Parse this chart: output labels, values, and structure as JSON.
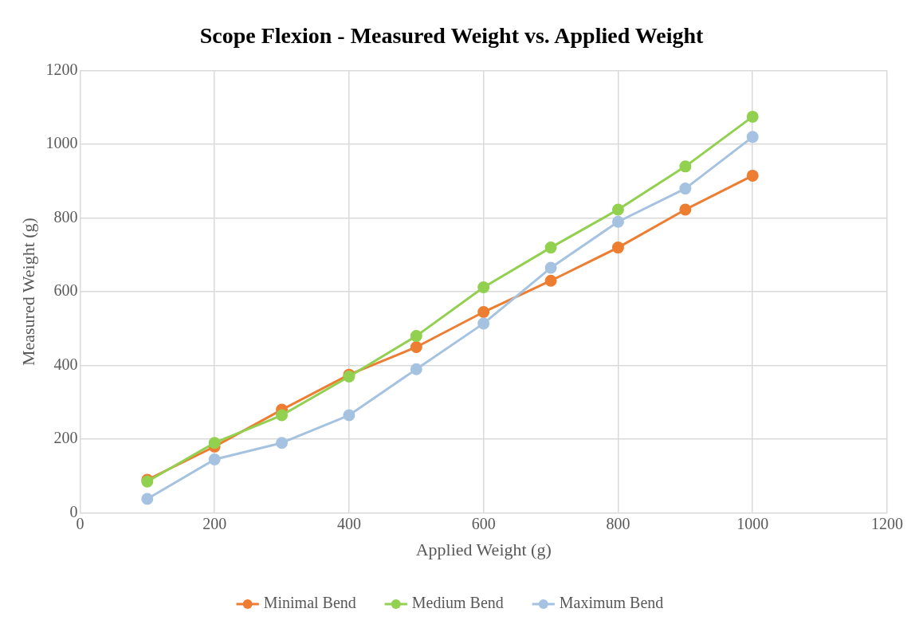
{
  "chart_data": {
    "type": "line",
    "title": "Scope Flexion - Measured Weight vs. Applied Weight",
    "xlabel": "Applied Weight (g)",
    "ylabel": "Measured Weight (g)",
    "x": [
      100,
      200,
      300,
      400,
      500,
      600,
      700,
      800,
      900,
      1000
    ],
    "series": [
      {
        "name": "Minimal Bend",
        "color": "#ed7d31",
        "values": [
          90,
          180,
          280,
          375,
          450,
          545,
          630,
          720,
          823,
          915
        ]
      },
      {
        "name": "Medium Bend",
        "color": "#92d050",
        "values": [
          85,
          190,
          265,
          370,
          480,
          612,
          720,
          823,
          940,
          1075
        ]
      },
      {
        "name": "Maximum Bend",
        "color": "#a5c3e0",
        "values": [
          38,
          145,
          190,
          265,
          390,
          514,
          665,
          790,
          880,
          1020
        ]
      }
    ],
    "xlim": [
      0,
      1200
    ],
    "xticks": [
      0,
      200,
      400,
      600,
      800,
      1000,
      1200
    ],
    "ylim": [
      0,
      1200
    ],
    "yticks": [
      0,
      200,
      400,
      600,
      800,
      1000,
      1200
    ],
    "grid": true,
    "legend": "bottom",
    "marker": "circle",
    "line_style": "solid"
  }
}
